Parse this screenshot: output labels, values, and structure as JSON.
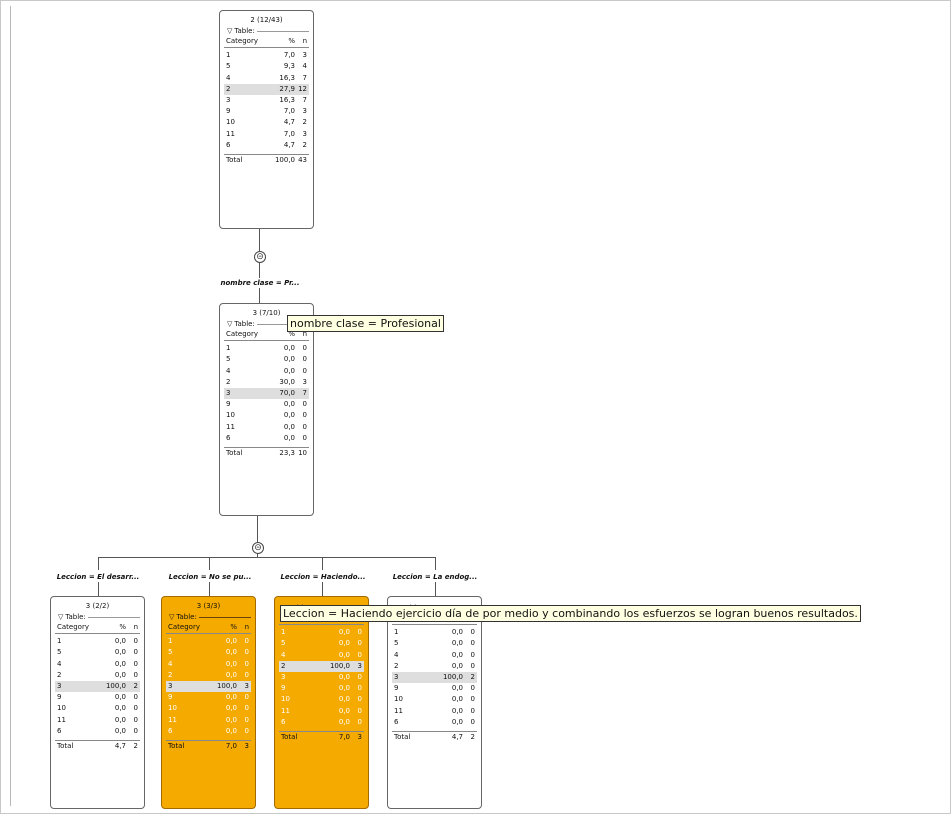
{
  "nodes": [
    {
      "title": "2 (12/43)",
      "table_label": "Table:",
      "header": [
        "Category",
        "%",
        "n"
      ],
      "rows": [
        [
          "1",
          "7,0",
          "3"
        ],
        [
          "5",
          "9,3",
          "4"
        ],
        [
          "4",
          "16,3",
          "7"
        ],
        [
          "2",
          "27,9",
          "12"
        ],
        [
          "3",
          "16,3",
          "7"
        ],
        [
          "9",
          "7,0",
          "3"
        ],
        [
          "10",
          "4,7",
          "2"
        ],
        [
          "11",
          "7,0",
          "3"
        ],
        [
          "6",
          "4,7",
          "2"
        ]
      ],
      "total": [
        "Total",
        "100,0",
        "43"
      ]
    },
    {
      "title": "3 (7/10)",
      "table_label": "Table:",
      "header": [
        "Category",
        "%",
        "n"
      ],
      "rows": [
        [
          "1",
          "0,0",
          "0"
        ],
        [
          "5",
          "0,0",
          "0"
        ],
        [
          "4",
          "0,0",
          "0"
        ],
        [
          "2",
          "30,0",
          "3"
        ],
        [
          "3",
          "70,0",
          "7"
        ],
        [
          "9",
          "0,0",
          "0"
        ],
        [
          "10",
          "0,0",
          "0"
        ],
        [
          "11",
          "0,0",
          "0"
        ],
        [
          "6",
          "0,0",
          "0"
        ]
      ],
      "total": [
        "Total",
        "23,3",
        "10"
      ]
    },
    {
      "title": "3 (2/2)",
      "table_label": "Table:",
      "header": [
        "Category",
        "%",
        "n"
      ],
      "rows": [
        [
          "1",
          "0,0",
          "0"
        ],
        [
          "5",
          "0,0",
          "0"
        ],
        [
          "4",
          "0,0",
          "0"
        ],
        [
          "2",
          "0,0",
          "0"
        ],
        [
          "3",
          "100,0",
          "2"
        ],
        [
          "9",
          "0,0",
          "0"
        ],
        [
          "10",
          "0,0",
          "0"
        ],
        [
          "11",
          "0,0",
          "0"
        ],
        [
          "6",
          "0,0",
          "0"
        ]
      ],
      "total": [
        "Total",
        "4,7",
        "2"
      ]
    },
    {
      "title": "3 (3/3)",
      "table_label": "Table:",
      "header": [
        "Category",
        "%",
        "n"
      ],
      "rows": [
        [
          "1",
          "0,0",
          "0"
        ],
        [
          "5",
          "0,0",
          "0"
        ],
        [
          "4",
          "0,0",
          "0"
        ],
        [
          "2",
          "0,0",
          "0"
        ],
        [
          "3",
          "100,0",
          "3"
        ],
        [
          "9",
          "0,0",
          "0"
        ],
        [
          "10",
          "0,0",
          "0"
        ],
        [
          "11",
          "0,0",
          "0"
        ],
        [
          "6",
          "0,0",
          "0"
        ]
      ],
      "total": [
        "Total",
        "7,0",
        "3"
      ]
    },
    {
      "title": "",
      "table_label": "Table:",
      "header": [
        "Category",
        "%",
        "n"
      ],
      "rows": [
        [
          "1",
          "0,0",
          "0"
        ],
        [
          "5",
          "0,0",
          "0"
        ],
        [
          "4",
          "0,0",
          "0"
        ],
        [
          "2",
          "100,0",
          "3"
        ],
        [
          "3",
          "0,0",
          "0"
        ],
        [
          "9",
          "0,0",
          "0"
        ],
        [
          "10",
          "0,0",
          "0"
        ],
        [
          "11",
          "0,0",
          "0"
        ],
        [
          "6",
          "0,0",
          "0"
        ]
      ],
      "total": [
        "Total",
        "7,0",
        "3"
      ]
    },
    {
      "title": "",
      "table_label": "Table:",
      "header": [
        "Category",
        "%",
        "n"
      ],
      "rows": [
        [
          "1",
          "0,0",
          "0"
        ],
        [
          "5",
          "0,0",
          "0"
        ],
        [
          "4",
          "0,0",
          "0"
        ],
        [
          "2",
          "0,0",
          "0"
        ],
        [
          "3",
          "100,0",
          "2"
        ],
        [
          "9",
          "0,0",
          "0"
        ],
        [
          "10",
          "0,0",
          "0"
        ],
        [
          "11",
          "0,0",
          "0"
        ],
        [
          "6",
          "0,0",
          "0"
        ]
      ],
      "total": [
        "Total",
        "4,7",
        "2"
      ]
    }
  ],
  "edges": {
    "root_to_n1": "nombre clase = Pr...",
    "n1_to_n2": "Leccion = El desarr...",
    "n1_to_n3": "Leccion = No se pu...",
    "n1_to_n4": "Leccion = Haciendo...",
    "n1_to_n5": "Leccion = La endog..."
  },
  "collapse_symbol": "⊝",
  "tooltips": {
    "t1": "nombre clase = Profesional",
    "t2": "Leccion = Haciendo ejercicio día de por medio y combinando los esfuerzos se logran buenos resultados."
  },
  "colors": {
    "highlight": "#f5aa00",
    "selected_row": "#dedede",
    "tooltip_bg": "#ffffe1"
  }
}
